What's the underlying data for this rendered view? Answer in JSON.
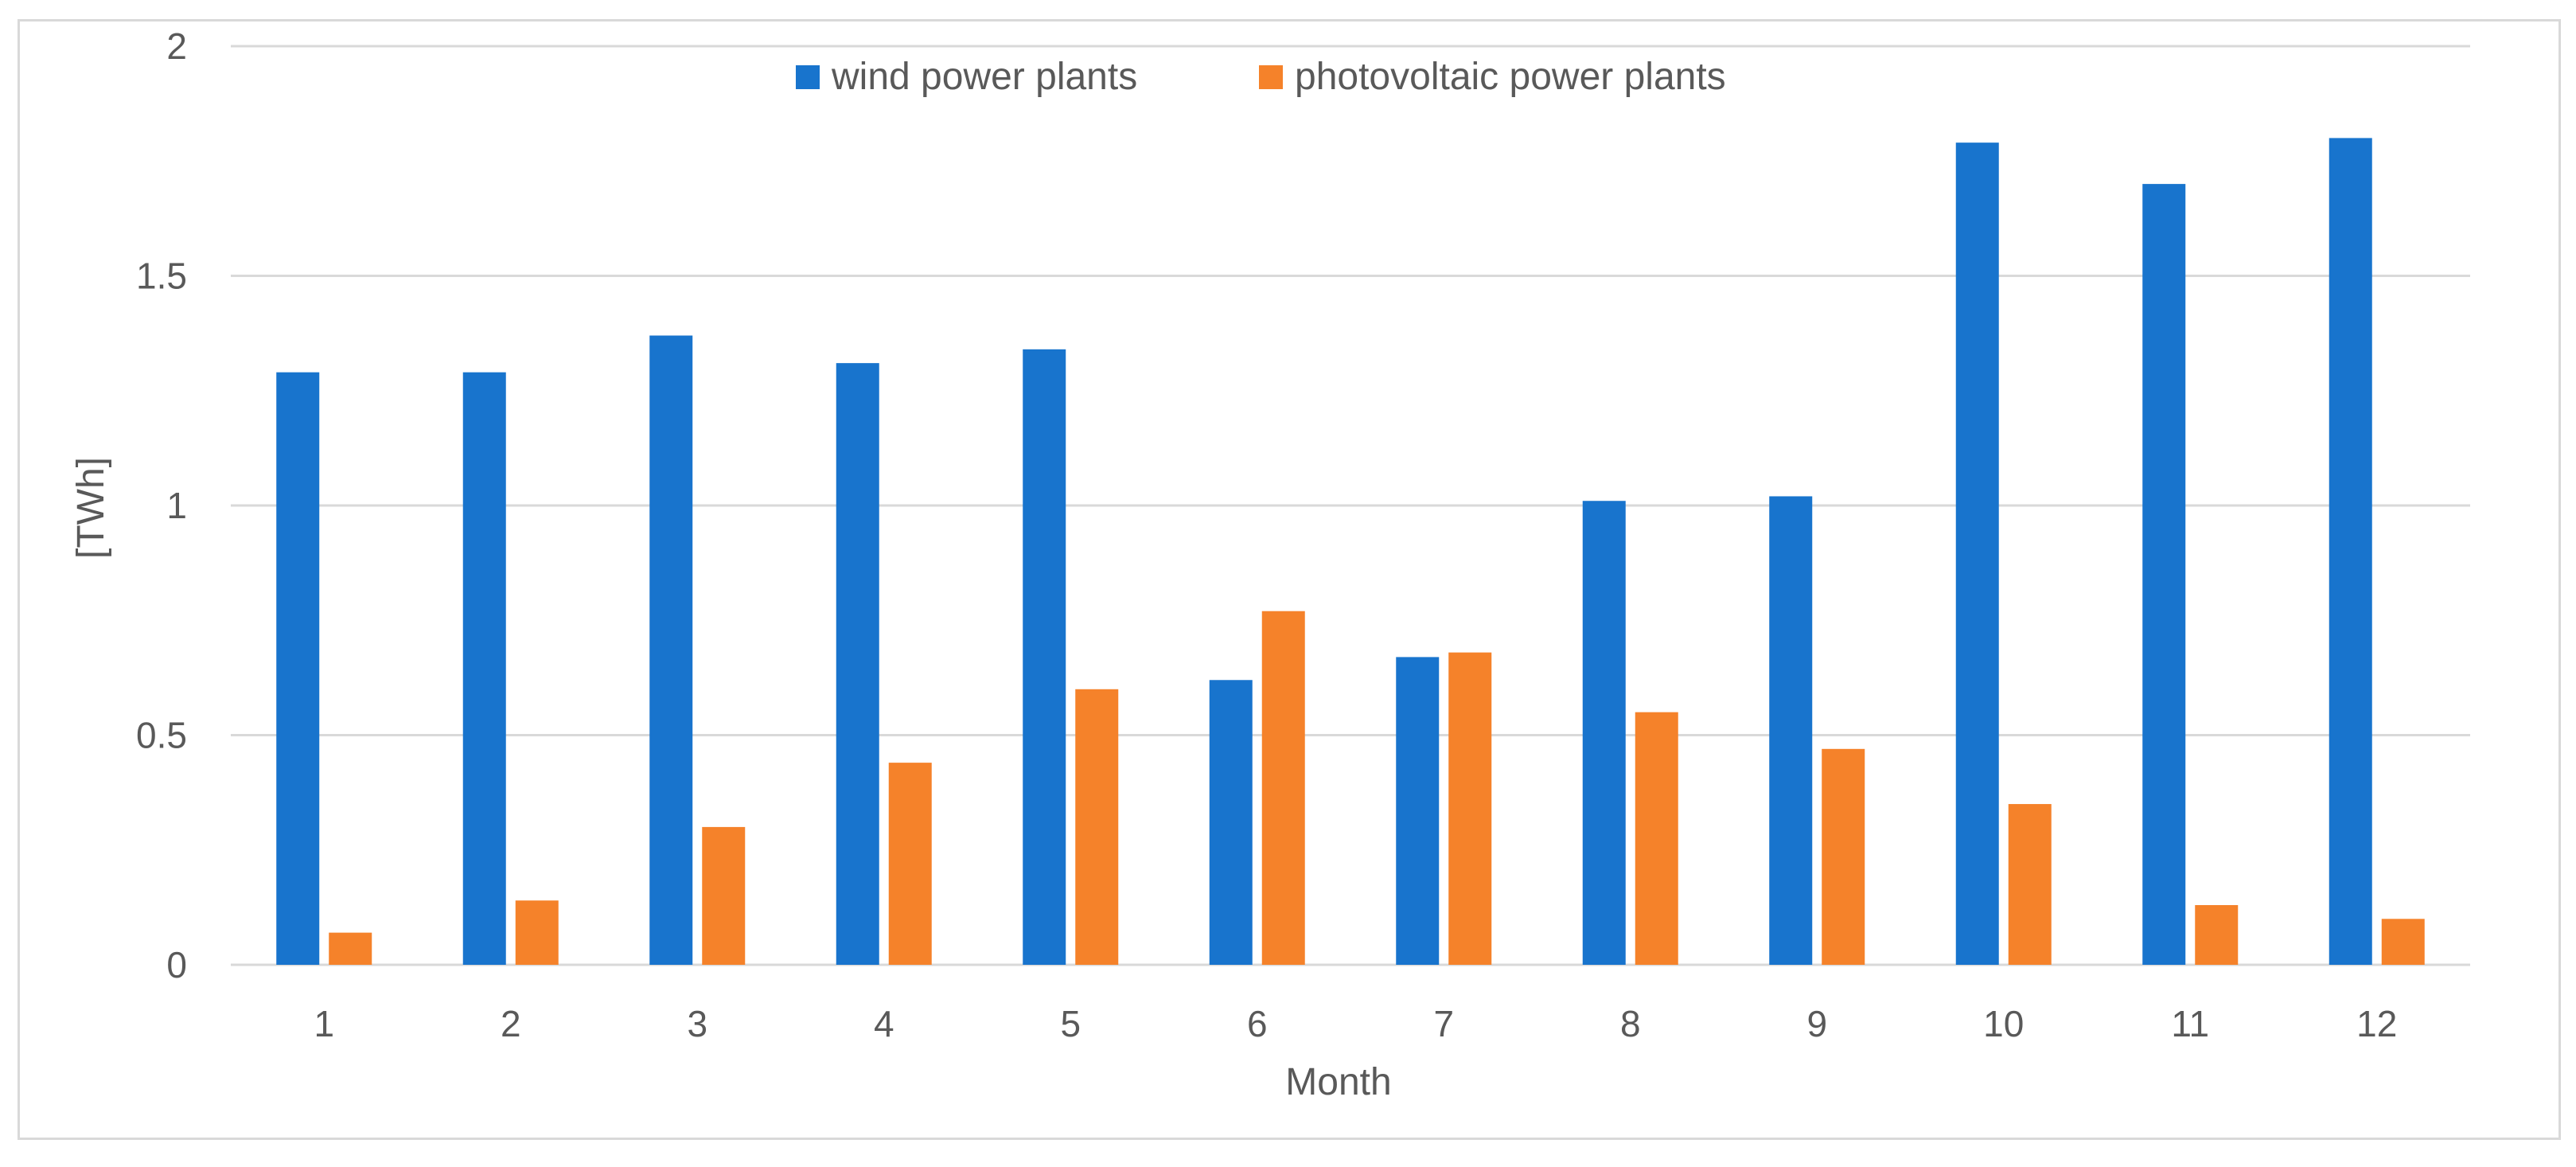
{
  "chart_data": {
    "type": "bar",
    "title": "",
    "xlabel": "Month",
    "ylabel": "[TWh]",
    "ylim": [
      0,
      2
    ],
    "yticks": [
      "0",
      "0.5",
      "1",
      "1.5",
      "2"
    ],
    "grid": true,
    "legend_position": "top-center",
    "categories": [
      "1",
      "2",
      "3",
      "4",
      "5",
      "6",
      "7",
      "8",
      "9",
      "10",
      "11",
      "12"
    ],
    "series": [
      {
        "name": "wind power plants",
        "color": "#1874CD",
        "values": [
          1.29,
          1.29,
          1.37,
          1.31,
          1.34,
          0.62,
          0.67,
          1.01,
          1.02,
          1.79,
          1.7,
          1.8
        ]
      },
      {
        "name": "photovoltaic power plants",
        "color": "#F5822A",
        "values": [
          0.07,
          0.14,
          0.3,
          0.44,
          0.6,
          0.77,
          0.68,
          0.55,
          0.47,
          0.35,
          0.13,
          0.1
        ]
      }
    ]
  }
}
